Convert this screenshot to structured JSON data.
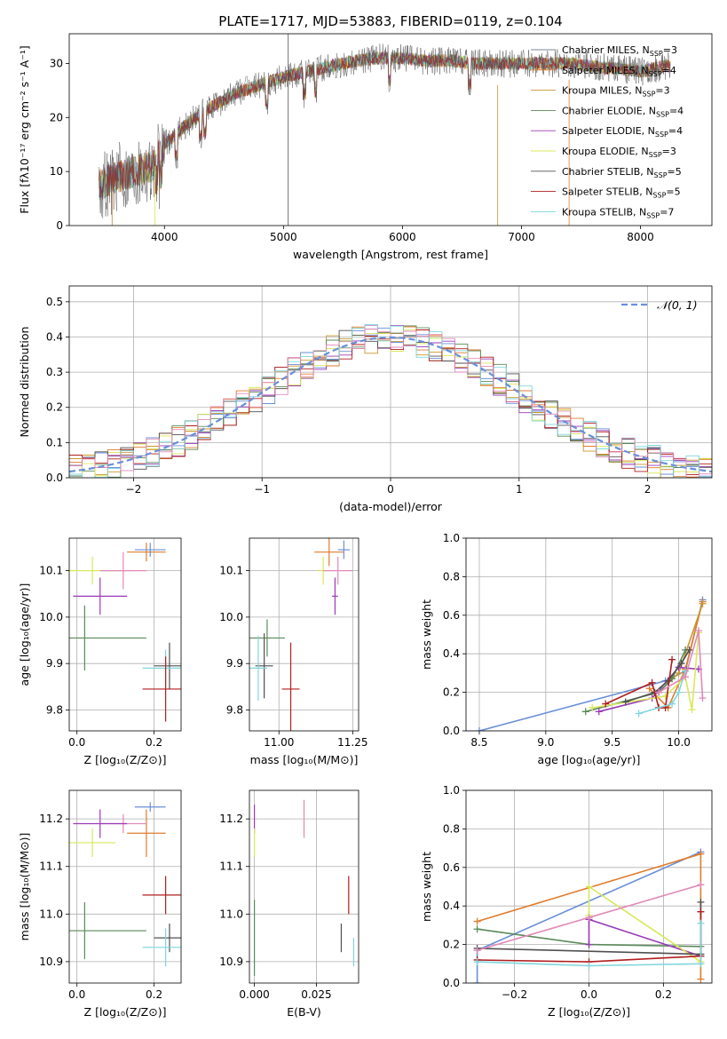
{
  "figure_title": "PLATE=1717, MJD=53883, FIBERID=0119, z=0.104",
  "colors": {
    "Chabrier MILES": "#6a8fd8",
    "Salpeter MILES": "#e07b2c",
    "Kroupa MILES": "#c8962e",
    "Chabrier ELODIE": "#5b8a5b",
    "Salpeter ELODIE": "#9a3ab8",
    "Kroupa ELODIE": "#d8e85a",
    "Chabrier STELIB": "#505050",
    "Salpeter STELIB": "#b01e1e",
    "Kroupa STELIB": "#7fd6dc",
    "pink": "#e08ab8"
  },
  "chart_data": [
    {
      "id": "spectrum",
      "type": "line",
      "xlabel": "wavelength [Angstrom, rest frame]",
      "ylabel": "Flux [fλ10⁻¹⁷ erg cm⁻² s⁻¹ A⁻¹]",
      "xlim": [
        3200,
        8600
      ],
      "ylim": [
        0,
        35.5
      ],
      "xticks": [
        4000,
        5000,
        6000,
        7000,
        8000
      ],
      "yticks": [
        0,
        10,
        20,
        30
      ],
      "legend": [
        {
          "label": "Chabrier MILES, N",
          "sub": "SSP",
          "tail": "=3",
          "color": "#7a8a9a"
        },
        {
          "label": "Salpeter MILES, N",
          "sub": "SSP",
          "tail": "=4",
          "color": "#e07b2c"
        },
        {
          "label": "Kroupa MILES, N",
          "sub": "SSP",
          "tail": "=3",
          "color": "#c8962e"
        },
        {
          "label": "Chabrier ELODIE, N",
          "sub": "SSP",
          "tail": "=4",
          "color": "#5b8a5b"
        },
        {
          "label": "Salpeter ELODIE, N",
          "sub": "SSP",
          "tail": "=4",
          "color": "#9a3ab8"
        },
        {
          "label": "Kroupa ELODIE, N",
          "sub": "SSP",
          "tail": "=3",
          "color": "#d8e85a"
        },
        {
          "label": "Chabrier STELIB, N",
          "sub": "SSP",
          "tail": "=5",
          "color": "#505050"
        },
        {
          "label": "Salpeter STELIB, N",
          "sub": "SSP",
          "tail": "=5",
          "color": "#b01e1e"
        },
        {
          "label": "Kroupa STELIB, N",
          "sub": "SSP",
          "tail": "=7",
          "color": "#7fd6dc"
        }
      ],
      "continuum": {
        "x": [
          3450,
          3600,
          3750,
          3900,
          4000,
          4200,
          4400,
          4600,
          4800,
          5000,
          5200,
          5400,
          5600,
          5800,
          6000,
          6200,
          6400,
          6600,
          6800,
          7000,
          7200,
          7400,
          7600,
          7800,
          8000,
          8200
        ],
        "y": [
          7.5,
          9,
          10,
          11,
          15,
          19,
          22,
          24.5,
          26,
          27.5,
          28.5,
          29.5,
          30.5,
          31,
          31,
          30.5,
          30.5,
          30,
          30,
          30,
          30,
          30,
          29.5,
          29,
          28.5,
          29.5
        ]
      }
    },
    {
      "id": "residual-hist",
      "type": "step",
      "xlabel": "(data-model)/error",
      "ylabel": "Normed distribution",
      "xlim": [
        -2.5,
        2.5
      ],
      "ylim": [
        0,
        0.545
      ],
      "xticks": [
        -2,
        -1,
        0,
        1,
        2
      ],
      "yticks": [
        0.0,
        0.1,
        0.2,
        0.3,
        0.4,
        0.5
      ],
      "legend": {
        "label": "𝒩(0, 1)",
        "color": "#6a8fd8",
        "style": "dashed"
      },
      "bin_width": 0.1
    },
    {
      "id": "age-vs-Z",
      "type": "errorbar",
      "xlabel": "Z [log₁₀(Z/Z⊙)]",
      "ylabel": "age  [log₁₀(age/yr)]",
      "xlim": [
        -0.02,
        0.27
      ],
      "ylim": [
        9.755,
        10.17
      ],
      "xticks": [
        0.0,
        0.2
      ],
      "yticks": [
        9.8,
        9.9,
        10.0,
        10.1
      ],
      "points": [
        {
          "x": 0.18,
          "y": 10.14,
          "xerr": 0.05,
          "yerr": 0.02,
          "c": "#e07b2c"
        },
        {
          "x": 0.19,
          "y": 10.145,
          "xerr": 0.04,
          "yerr": 0.015,
          "c": "#6a8fd8"
        },
        {
          "x": 0.04,
          "y": 10.1,
          "xerr": 0.1,
          "yerr": 0.03,
          "c": "#d8e85a"
        },
        {
          "x": 0.12,
          "y": 10.1,
          "xerr": 0.06,
          "yerr": 0.04,
          "c": "#e08ab8"
        },
        {
          "x": 0.06,
          "y": 10.045,
          "xerr": 0.07,
          "yerr": 0.04,
          "c": "#9a3ab8"
        },
        {
          "x": 0.02,
          "y": 9.955,
          "xerr": 0.16,
          "yerr": 0.07,
          "c": "#5b8a5b"
        },
        {
          "x": 0.24,
          "y": 9.895,
          "xerr": 0.04,
          "yerr": 0.05,
          "c": "#505050"
        },
        {
          "x": 0.23,
          "y": 9.89,
          "xerr": 0.06,
          "yerr": 0.04,
          "c": "#7fd6dc"
        },
        {
          "x": 0.23,
          "y": 9.845,
          "xerr": 0.06,
          "yerr": 0.07,
          "c": "#b01e1e"
        }
      ]
    },
    {
      "id": "age-vs-mass",
      "type": "errorbar",
      "xlabel": "mass [log₁₀(M/M⊙)]",
      "ylabel": "",
      "xlim": [
        10.9,
        11.27
      ],
      "ylim": [
        9.755,
        10.17
      ],
      "xticks": [
        11.0,
        11.25
      ],
      "yticks": [
        9.8,
        9.9,
        10.0,
        10.1
      ],
      "points": [
        {
          "x": 11.17,
          "y": 10.14,
          "xerr": 0.05,
          "yerr": 0.03,
          "c": "#e07b2c"
        },
        {
          "x": 11.22,
          "y": 10.145,
          "xerr": 0.02,
          "yerr": 0.02,
          "c": "#6a8fd8"
        },
        {
          "x": 11.15,
          "y": 10.1,
          "xerr": 0.02,
          "yerr": 0.03,
          "c": "#d8e85a"
        },
        {
          "x": 11.2,
          "y": 10.1,
          "xerr": 0.05,
          "yerr": 0.03,
          "c": "#e08ab8"
        },
        {
          "x": 11.19,
          "y": 10.045,
          "xerr": 0.01,
          "yerr": 0.04,
          "c": "#9a3ab8"
        },
        {
          "x": 10.96,
          "y": 9.955,
          "xerr": 0.06,
          "yerr": 0.04,
          "c": "#5b8a5b"
        },
        {
          "x": 10.95,
          "y": 9.895,
          "xerr": 0.03,
          "yerr": 0.07,
          "c": "#505050"
        },
        {
          "x": 10.93,
          "y": 9.89,
          "xerr": 0.03,
          "yerr": 0.07,
          "c": "#7fd6dc"
        },
        {
          "x": 11.04,
          "y": 9.845,
          "xerr": 0.03,
          "yerr": 0.1,
          "c": "#b01e1e"
        }
      ]
    },
    {
      "id": "massweight-vs-age",
      "type": "line",
      "xlabel": "age  [log₁₀(age/yr)]",
      "ylabel": "mass weight",
      "xlim": [
        8.4,
        10.25
      ],
      "ylim": [
        0,
        1.0
      ],
      "xticks": [
        8.5,
        9.0,
        9.5,
        10.0
      ],
      "yticks": [
        0.0,
        0.2,
        0.4,
        0.6,
        0.8,
        1.0
      ],
      "series": [
        {
          "c": "#6a8fd8",
          "x": [
            8.5,
            9.9,
            10.05,
            10.18
          ],
          "y": [
            0.0,
            0.26,
            0.31,
            0.68
          ]
        },
        {
          "c": "#e07b2c",
          "x": [
            9.78,
            9.92,
            10.05,
            10.18
          ],
          "y": [
            0.22,
            0.12,
            0.32,
            0.67
          ]
        },
        {
          "c": "#c8962e",
          "x": [
            9.85,
            10.0,
            10.18
          ],
          "y": [
            0.2,
            0.3,
            0.66
          ]
        },
        {
          "c": "#5b8a5b",
          "x": [
            9.3,
            9.85,
            9.95,
            10.05
          ],
          "y": [
            0.1,
            0.2,
            0.27,
            0.42
          ]
        },
        {
          "c": "#9a3ab8",
          "x": [
            9.4,
            9.8,
            10.0,
            10.15
          ],
          "y": [
            0.1,
            0.17,
            0.33,
            0.32
          ]
        },
        {
          "c": "#d8e85a",
          "x": [
            9.35,
            9.9,
            10.05,
            10.1,
            10.15
          ],
          "y": [
            0.12,
            0.18,
            0.28,
            0.11,
            0.51
          ]
        },
        {
          "c": "#505050",
          "x": [
            9.6,
            9.82,
            9.92,
            10.02,
            10.08
          ],
          "y": [
            0.15,
            0.2,
            0.26,
            0.35,
            0.42
          ]
        },
        {
          "c": "#b01e1e",
          "x": [
            9.45,
            9.8,
            9.85,
            9.9,
            9.95
          ],
          "y": [
            0.14,
            0.25,
            0.12,
            0.12,
            0.37
          ]
        },
        {
          "c": "#7fd6dc",
          "x": [
            9.7,
            9.95,
            10.0,
            10.05
          ],
          "y": [
            0.09,
            0.14,
            0.2,
            0.31
          ]
        },
        {
          "c": "#e08ab8",
          "x": [
            9.85,
            10.05,
            10.15,
            10.18
          ],
          "y": [
            0.2,
            0.28,
            0.52,
            0.17
          ]
        }
      ]
    },
    {
      "id": "mass-vs-Z",
      "type": "errorbar",
      "xlabel": "Z [log₁₀(Z/Z⊙)]",
      "ylabel": "mass [log₁₀(M/M⊙)]",
      "xlim": [
        -0.02,
        0.27
      ],
      "ylim": [
        10.855,
        11.26
      ],
      "xticks": [
        0.0,
        0.2
      ],
      "yticks": [
        10.9,
        11.0,
        11.1,
        11.2
      ],
      "points": [
        {
          "x": 0.19,
          "y": 11.225,
          "xerr": 0.04,
          "yerr": 0.01,
          "c": "#6a8fd8"
        },
        {
          "x": 0.18,
          "y": 11.17,
          "xerr": 0.05,
          "yerr": 0.05,
          "c": "#e07b2c"
        },
        {
          "x": 0.12,
          "y": 11.19,
          "xerr": 0.06,
          "yerr": 0.02,
          "c": "#e08ab8"
        },
        {
          "x": 0.06,
          "y": 11.19,
          "xerr": 0.07,
          "yerr": 0.03,
          "c": "#9a3ab8"
        },
        {
          "x": 0.04,
          "y": 11.15,
          "xerr": 0.06,
          "yerr": 0.03,
          "c": "#d8e85a"
        },
        {
          "x": 0.23,
          "y": 11.04,
          "xerr": 0.06,
          "yerr": 0.04,
          "c": "#b01e1e"
        },
        {
          "x": 0.02,
          "y": 10.965,
          "xerr": 0.16,
          "yerr": 0.06,
          "c": "#5b8a5b"
        },
        {
          "x": 0.24,
          "y": 10.95,
          "xerr": 0.04,
          "yerr": 0.03,
          "c": "#505050"
        },
        {
          "x": 0.23,
          "y": 10.93,
          "xerr": 0.06,
          "yerr": 0.04,
          "c": "#7fd6dc"
        }
      ]
    },
    {
      "id": "mass-vs-ebv",
      "type": "errorbar",
      "xlabel": "E(B-V)",
      "ylabel": "",
      "xlim": [
        -0.002,
        0.042
      ],
      "ylim": [
        10.855,
        11.26
      ],
      "xticks": [
        0.0,
        0.025
      ],
      "yticks": [
        10.9,
        11.0,
        11.1,
        11.2
      ],
      "points": [
        {
          "x": 0.0,
          "y": 11.2,
          "xerr": 0.0,
          "yerr": 0.03,
          "c": "#9a3ab8"
        },
        {
          "x": 0.0,
          "y": 11.15,
          "xerr": 0.0,
          "yerr": 0.03,
          "c": "#d8e85a"
        },
        {
          "x": 0.0,
          "y": 10.95,
          "xerr": 0.0,
          "yerr": 0.08,
          "c": "#5b8a5b"
        },
        {
          "x": 0.02,
          "y": 11.2,
          "xerr": 0.0,
          "yerr": 0.04,
          "c": "#e08ab8"
        },
        {
          "x": 0.038,
          "y": 11.04,
          "xerr": 0.0,
          "yerr": 0.04,
          "c": "#b01e1e"
        },
        {
          "x": 0.035,
          "y": 10.95,
          "xerr": 0.0,
          "yerr": 0.03,
          "c": "#505050"
        },
        {
          "x": 0.04,
          "y": 10.92,
          "xerr": 0.0,
          "yerr": 0.03,
          "c": "#7fd6dc"
        }
      ]
    },
    {
      "id": "massweight-vs-Z",
      "type": "line",
      "xlabel": "Z [log₁₀(Z/Z⊙)]",
      "ylabel": "mass weight",
      "xlim": [
        -0.33,
        0.33
      ],
      "ylim": [
        0,
        1.0
      ],
      "xticks": [
        -0.2,
        0.0,
        0.2
      ],
      "yticks": [
        0.0,
        0.2,
        0.4,
        0.6,
        0.8,
        1.0
      ],
      "series": [
        {
          "c": "#6a8fd8",
          "x": [
            -0.3,
            -0.3,
            0.3
          ],
          "y": [
            0.0,
            0.17,
            0.68
          ]
        },
        {
          "c": "#e07b2c",
          "x": [
            -0.3,
            0.3,
            0.3
          ],
          "y": [
            0.32,
            0.67,
            0.02
          ]
        },
        {
          "c": "#5b8a5b",
          "x": [
            -0.3,
            0.0,
            0.3
          ],
          "y": [
            0.28,
            0.2,
            0.19
          ]
        },
        {
          "c": "#9a3ab8",
          "x": [
            0.0,
            0.0,
            0.3
          ],
          "y": [
            0.2,
            0.33,
            0.14
          ]
        },
        {
          "c": "#d8e85a",
          "x": [
            0.0,
            0.0,
            0.3
          ],
          "y": [
            0.35,
            0.5,
            0.11
          ]
        },
        {
          "c": "#505050",
          "x": [
            -0.3,
            0.3,
            0.3
          ],
          "y": [
            0.18,
            0.15,
            0.42
          ]
        },
        {
          "c": "#b01e1e",
          "x": [
            -0.3,
            0.0,
            0.3,
            0.3
          ],
          "y": [
            0.12,
            0.11,
            0.14,
            0.37
          ]
        },
        {
          "c": "#7fd6dc",
          "x": [
            -0.3,
            0.0,
            0.3,
            0.3
          ],
          "y": [
            0.11,
            0.09,
            0.1,
            0.31
          ]
        },
        {
          "c": "#e08ab8",
          "x": [
            -0.3,
            0.0,
            0.3
          ],
          "y": [
            0.17,
            0.34,
            0.51
          ]
        }
      ]
    }
  ]
}
